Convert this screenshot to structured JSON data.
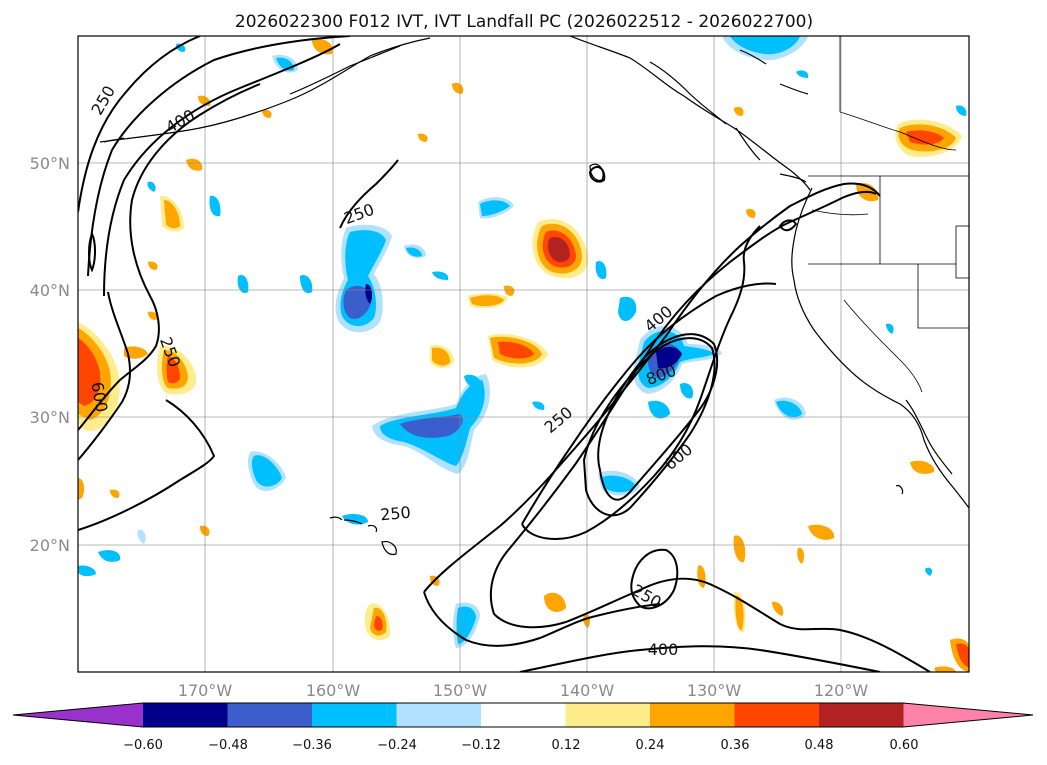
{
  "title": "2026022300 F012 IVT, IVT Landfall PC (2026022512 - 2026022700)",
  "map": {
    "lat_labels": [
      "50°N",
      "40°N",
      "30°N",
      "20°N"
    ],
    "lon_labels": [
      "170°W",
      "160°W",
      "150°W",
      "140°W",
      "130°W",
      "120°W"
    ],
    "contour_labels": [
      "250",
      "400",
      "250",
      "250",
      "600",
      "400",
      "800",
      "250",
      "600",
      "250",
      "250",
      "400"
    ]
  },
  "colorbar": {
    "ticks": [
      "−0.60",
      "−0.48",
      "−0.36",
      "−0.24",
      "−0.12",
      "0.12",
      "0.24",
      "0.36",
      "0.48",
      "0.60"
    ],
    "colors": [
      "#9932cc",
      "#00008b",
      "#3a5fcd",
      "#00bfff",
      "#b0e2ff",
      "#ffffff",
      "#ffec8b",
      "#ffa500",
      "#ff4500",
      "#b22222",
      "#ff82ab"
    ]
  },
  "chart_data": {
    "type": "heatmap",
    "title": "2026022300 F012 IVT, IVT Landfall PC (2026022512 - 2026022700)",
    "xlabel": "",
    "ylabel": "",
    "xlim": [
      -180,
      -110
    ],
    "ylim": [
      10,
      60
    ],
    "lon_ticks": [
      -170,
      -160,
      -150,
      -140,
      -130,
      -120
    ],
    "lat_ticks": [
      50,
      40,
      30,
      20
    ],
    "ivt_contour_levels": [
      250,
      400,
      600,
      800
    ],
    "colorbar_levels": [
      -0.6,
      -0.48,
      -0.36,
      -0.24,
      -0.12,
      0.12,
      0.24,
      0.36,
      0.48,
      0.6
    ],
    "colorbar_extend": "both"
  }
}
